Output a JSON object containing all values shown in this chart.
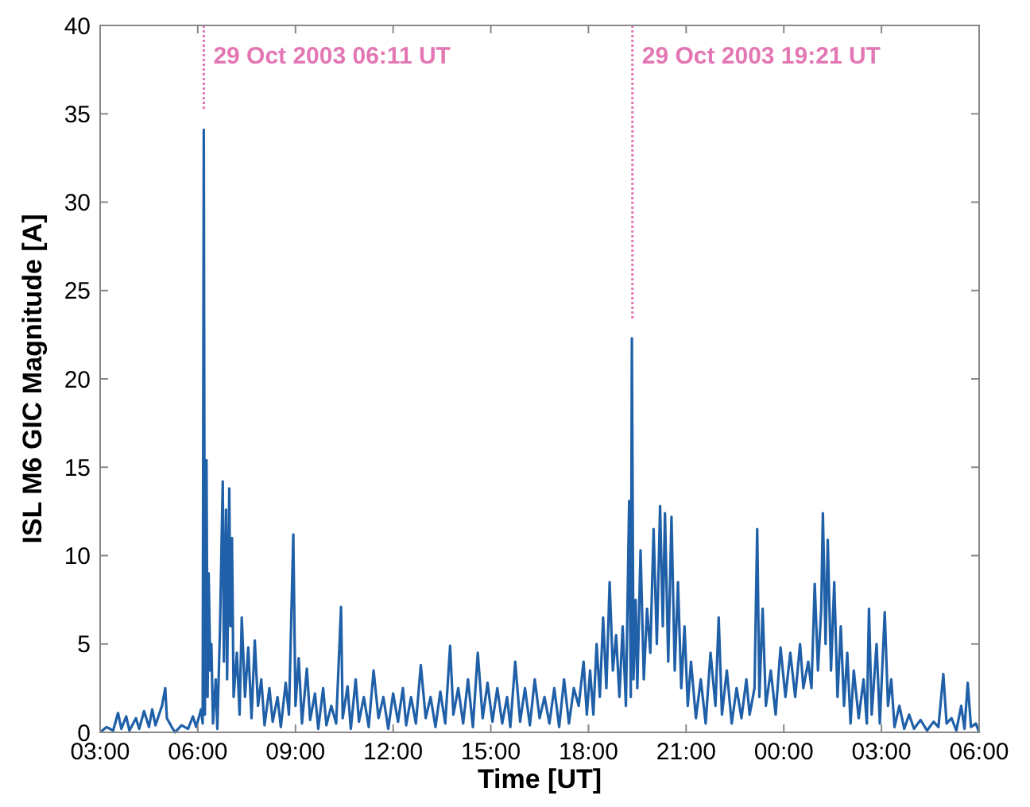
{
  "chart_data": {
    "type": "line",
    "xlabel": "Time [UT]",
    "ylabel": "ISL M6 GIC Magnitude [A]",
    "xlim": [
      "2003-10-29T03:00",
      "2003-10-30T06:00"
    ],
    "xticks": [
      {
        "value": "2003-10-29T03:00",
        "label": "03:00"
      },
      {
        "value": "2003-10-29T06:00",
        "label": "06:00"
      },
      {
        "value": "2003-10-29T09:00",
        "label": "09:00"
      },
      {
        "value": "2003-10-29T12:00",
        "label": "12:00"
      },
      {
        "value": "2003-10-29T15:00",
        "label": "15:00"
      },
      {
        "value": "2003-10-29T18:00",
        "label": "18:00"
      },
      {
        "value": "2003-10-29T21:00",
        "label": "21:00"
      },
      {
        "value": "2003-10-30T00:00",
        "label": "00:00"
      },
      {
        "value": "2003-10-30T03:00",
        "label": "03:00"
      },
      {
        "value": "2003-10-30T06:00",
        "label": "06:00"
      }
    ],
    "ylim": [
      0,
      40
    ],
    "yticks": [
      0,
      5,
      10,
      15,
      20,
      25,
      30,
      35,
      40
    ],
    "grid": false,
    "marker": "none",
    "line_style": "solid",
    "ref_lines": [
      {
        "axis": "x",
        "value": "2003-10-29T06:11",
        "label": "29 Oct 2003 06:11 UT",
        "color": "#e377b4",
        "line_style": "dotted"
      },
      {
        "axis": "x",
        "value": "2003-10-29T19:21",
        "label": "29 Oct 2003 19:21 UT",
        "color": "#e377b4",
        "line_style": "dotted"
      }
    ],
    "series": [
      {
        "color": "#2060a8",
        "x": [
          "2003-10-29T03:00",
          "2003-10-29T03:12",
          "2003-10-29T03:24",
          "2003-10-29T03:33",
          "2003-10-29T03:39",
          "2003-10-29T03:48",
          "2003-10-29T03:54",
          "2003-10-29T04:06",
          "2003-10-29T04:12",
          "2003-10-29T04:21",
          "2003-10-29T04:30",
          "2003-10-29T04:36",
          "2003-10-29T04:42",
          "2003-10-29T04:54",
          "2003-10-29T05:00",
          "2003-10-29T05:03",
          "2003-10-29T05:12",
          "2003-10-29T05:18",
          "2003-10-29T05:30",
          "2003-10-29T05:42",
          "2003-10-29T05:51",
          "2003-10-29T05:57",
          "2003-10-29T06:06",
          "2003-10-29T06:09",
          "2003-10-29T06:11",
          "2003-10-29T06:13",
          "2003-10-29T06:16",
          "2003-10-29T06:18",
          "2003-10-29T06:20",
          "2003-10-29T06:23",
          "2003-10-29T06:25",
          "2003-10-29T06:28",
          "2003-10-29T06:33",
          "2003-10-29T06:36",
          "2003-10-29T06:41",
          "2003-10-29T06:44",
          "2003-10-29T06:46",
          "2003-10-29T06:48",
          "2003-10-29T06:52",
          "2003-10-29T06:54",
          "2003-10-29T06:58",
          "2003-10-29T07:00",
          "2003-10-29T07:03",
          "2003-10-29T07:06",
          "2003-10-29T07:12",
          "2003-10-29T07:17",
          "2003-10-29T07:21",
          "2003-10-29T07:27",
          "2003-10-29T07:33",
          "2003-10-29T07:39",
          "2003-10-29T07:45",
          "2003-10-29T07:51",
          "2003-10-29T07:57",
          "2003-10-29T08:03",
          "2003-10-29T08:12",
          "2003-10-29T08:18",
          "2003-10-29T08:27",
          "2003-10-29T08:33",
          "2003-10-29T08:42",
          "2003-10-29T08:48",
          "2003-10-29T08:56",
          "2003-10-29T09:00",
          "2003-10-29T09:06",
          "2003-10-29T09:12",
          "2003-10-29T09:21",
          "2003-10-29T09:27",
          "2003-10-29T09:36",
          "2003-10-29T09:42",
          "2003-10-29T09:51",
          "2003-10-29T09:57",
          "2003-10-29T10:06",
          "2003-10-29T10:15",
          "2003-10-29T10:24",
          "2003-10-29T10:27",
          "2003-10-29T10:36",
          "2003-10-29T10:42",
          "2003-10-29T10:51",
          "2003-10-29T10:57",
          "2003-10-29T11:06",
          "2003-10-29T11:15",
          "2003-10-29T11:24",
          "2003-10-29T11:33",
          "2003-10-29T11:42",
          "2003-10-29T11:51",
          "2003-10-29T12:00",
          "2003-10-29T12:09",
          "2003-10-29T12:18",
          "2003-10-29T12:24",
          "2003-10-29T12:33",
          "2003-10-29T12:42",
          "2003-10-29T12:51",
          "2003-10-29T13:00",
          "2003-10-29T13:09",
          "2003-10-29T13:18",
          "2003-10-29T13:27",
          "2003-10-29T13:36",
          "2003-10-29T13:45",
          "2003-10-29T13:51",
          "2003-10-29T14:00",
          "2003-10-29T14:09",
          "2003-10-29T14:18",
          "2003-10-29T14:27",
          "2003-10-29T14:36",
          "2003-10-29T14:45",
          "2003-10-29T14:54",
          "2003-10-29T15:03",
          "2003-10-29T15:12",
          "2003-10-29T15:21",
          "2003-10-29T15:30",
          "2003-10-29T15:36",
          "2003-10-29T15:45",
          "2003-10-29T15:54",
          "2003-10-29T16:03",
          "2003-10-29T16:12",
          "2003-10-29T16:21",
          "2003-10-29T16:30",
          "2003-10-29T16:39",
          "2003-10-29T16:48",
          "2003-10-29T16:57",
          "2003-10-29T17:06",
          "2003-10-29T17:15",
          "2003-10-29T17:24",
          "2003-10-29T17:33",
          "2003-10-29T17:42",
          "2003-10-29T17:51",
          "2003-10-29T17:57",
          "2003-10-29T18:03",
          "2003-10-29T18:09",
          "2003-10-29T18:15",
          "2003-10-29T18:21",
          "2003-10-29T18:27",
          "2003-10-29T18:33",
          "2003-10-29T18:39",
          "2003-10-29T18:45",
          "2003-10-29T18:51",
          "2003-10-29T18:57",
          "2003-10-29T19:03",
          "2003-10-29T19:09",
          "2003-10-29T19:15",
          "2003-10-29T19:18",
          "2003-10-29T19:20",
          "2003-10-29T19:23",
          "2003-10-29T19:27",
          "2003-10-29T19:30",
          "2003-10-29T19:36",
          "2003-10-29T19:42",
          "2003-10-29T19:48",
          "2003-10-29T19:54",
          "2003-10-29T20:00",
          "2003-10-29T20:06",
          "2003-10-29T20:12",
          "2003-10-29T20:17",
          "2003-10-29T20:21",
          "2003-10-29T20:27",
          "2003-10-29T20:33",
          "2003-10-29T20:39",
          "2003-10-29T20:45",
          "2003-10-29T20:51",
          "2003-10-29T20:57",
          "2003-10-29T21:03",
          "2003-10-29T21:09",
          "2003-10-29T21:18",
          "2003-10-29T21:27",
          "2003-10-29T21:36",
          "2003-10-29T21:45",
          "2003-10-29T21:54",
          "2003-10-29T22:00",
          "2003-10-29T22:06",
          "2003-10-29T22:15",
          "2003-10-29T22:24",
          "2003-10-29T22:33",
          "2003-10-29T22:42",
          "2003-10-29T22:51",
          "2003-10-29T22:57",
          "2003-10-29T23:06",
          "2003-10-29T23:11",
          "2003-10-29T23:15",
          "2003-10-29T23:21",
          "2003-10-29T23:27",
          "2003-10-29T23:36",
          "2003-10-29T23:45",
          "2003-10-29T23:54",
          "2003-10-30T00:03",
          "2003-10-30T00:12",
          "2003-10-30T00:21",
          "2003-10-30T00:30",
          "2003-10-30T00:36",
          "2003-10-30T00:45",
          "2003-10-30T00:51",
          "2003-10-30T00:57",
          "2003-10-30T01:03",
          "2003-10-30T01:09",
          "2003-10-30T01:12",
          "2003-10-30T01:17",
          "2003-10-30T01:21",
          "2003-10-30T01:27",
          "2003-10-30T01:33",
          "2003-10-30T01:39",
          "2003-10-30T01:45",
          "2003-10-30T01:51",
          "2003-10-30T01:57",
          "2003-10-30T02:03",
          "2003-10-30T02:09",
          "2003-10-30T02:18",
          "2003-10-30T02:27",
          "2003-10-30T02:33",
          "2003-10-30T02:37",
          "2003-10-30T02:42",
          "2003-10-30T02:51",
          "2003-10-30T02:57",
          "2003-10-30T03:06",
          "2003-10-30T03:12",
          "2003-10-30T03:18",
          "2003-10-30T03:24",
          "2003-10-30T03:33",
          "2003-10-30T03:42",
          "2003-10-30T03:51",
          "2003-10-30T04:00",
          "2003-10-30T04:12",
          "2003-10-30T04:24",
          "2003-10-30T04:36",
          "2003-10-30T04:45",
          "2003-10-30T04:54",
          "2003-10-30T05:00",
          "2003-10-30T05:09",
          "2003-10-30T05:18",
          "2003-10-30T05:27",
          "2003-10-30T05:33",
          "2003-10-30T05:39",
          "2003-10-30T05:45",
          "2003-10-30T05:54",
          "2003-10-30T06:00"
        ],
        "values": [
          0,
          0.3,
          0.1,
          1.1,
          0.2,
          0.9,
          0.1,
          0.8,
          0.2,
          1.2,
          0.3,
          1.3,
          0.4,
          1.5,
          2.5,
          0.8,
          0.3,
          0,
          0.4,
          0.2,
          0.9,
          0.3,
          1.3,
          0.5,
          34.1,
          1.0,
          15.4,
          2.0,
          9.0,
          3.5,
          5.0,
          0.5,
          3.0,
          0.2,
          6.0,
          11.0,
          14.2,
          4.0,
          12.6,
          3.0,
          13.8,
          6.0,
          11.0,
          2.0,
          4.5,
          1.0,
          6.5,
          2.0,
          4.8,
          0.8,
          5.2,
          1.5,
          3.0,
          0.4,
          2.5,
          0.6,
          2.0,
          0.3,
          2.8,
          1.0,
          11.2,
          1.5,
          4.2,
          0.5,
          3.6,
          0.7,
          2.2,
          0.2,
          2.5,
          0.4,
          1.5,
          0.5,
          7.1,
          0.8,
          2.6,
          0.2,
          3.0,
          0.6,
          2.0,
          0.3,
          3.5,
          0.8,
          2.0,
          0.2,
          2.2,
          0.6,
          2.5,
          0.4,
          2.0,
          0.5,
          3.8,
          0.8,
          2.0,
          0.3,
          2.3,
          0.5,
          4.9,
          1.0,
          2.5,
          0.5,
          3.0,
          0.3,
          4.5,
          0.8,
          2.8,
          0.6,
          2.5,
          0.5,
          2.0,
          0.3,
          4.0,
          0.6,
          2.5,
          0.4,
          3.0,
          0.8,
          2.0,
          0.5,
          2.5,
          0.3,
          3.0,
          0.5,
          2.5,
          1.5,
          4.0,
          1.0,
          3.5,
          1.0,
          5.0,
          2.0,
          6.5,
          2.5,
          8.5,
          3.5,
          5.5,
          2.0,
          6.0,
          1.5,
          13.1,
          2.0,
          22.3,
          3.0,
          7.5,
          2.5,
          10.3,
          3.0,
          7.0,
          4.5,
          11.5,
          5.0,
          12.8,
          6.0,
          12.4,
          4.0,
          12.2,
          3.5,
          8.5,
          2.5,
          6.0,
          1.5,
          4.0,
          0.8,
          3.0,
          0.5,
          4.5,
          1.5,
          6.5,
          1.0,
          3.5,
          0.5,
          2.5,
          0.8,
          3.0,
          1.0,
          2.5,
          11.5,
          2.0,
          7.0,
          1.5,
          3.5,
          1.0,
          4.8,
          2.0,
          4.5,
          2.0,
          5.0,
          2.5,
          4.0,
          2.5,
          8.4,
          3.5,
          7.0,
          12.4,
          5.0,
          10.9,
          3.5,
          8.5,
          2.0,
          6.0,
          1.5,
          4.5,
          0.5,
          3.5,
          0.8,
          3.0,
          0.5,
          7.0,
          1.0,
          5.0,
          0.5,
          6.8,
          1.5,
          3.0,
          0.3,
          1.5,
          0.2,
          1.0,
          0.2,
          0.7,
          0.1,
          0.6,
          0.3,
          3.3,
          0.5,
          0.8,
          0.1,
          1.5,
          0.2,
          2.8,
          0.3,
          0.5,
          0
        ]
      }
    ]
  }
}
